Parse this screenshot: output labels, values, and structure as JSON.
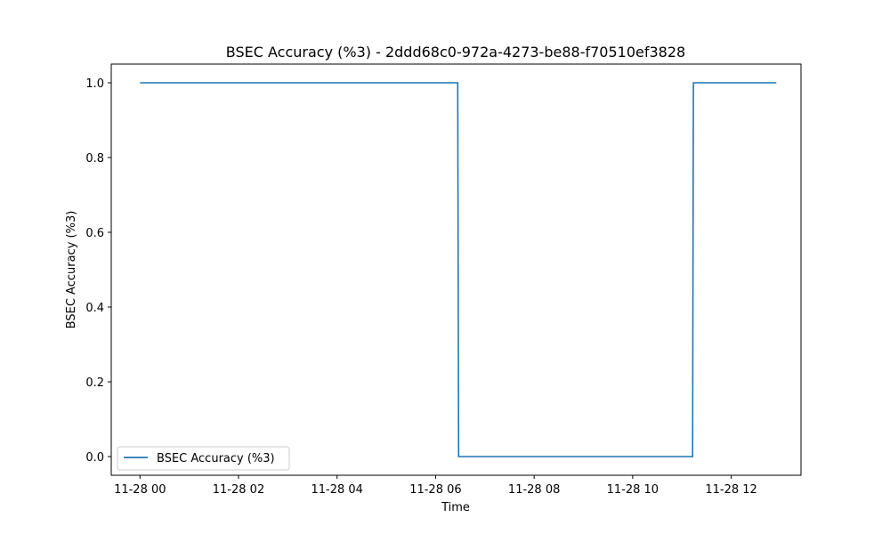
{
  "chart_data": {
    "type": "line",
    "title": "BSEC Accuracy (%3) - 2ddd68c0-972a-4273-be88-f70510ef3828",
    "xlabel": "Time",
    "ylabel": "BSEC Accuracy (%3)",
    "x_ticks": [
      "11-28 00",
      "11-28 02",
      "11-28 04",
      "11-28 06",
      "11-28 08",
      "11-28 10",
      "11-28 12"
    ],
    "y_ticks": [
      "0.0",
      "0.2",
      "0.4",
      "0.6",
      "0.8",
      "1.0"
    ],
    "xlim": [
      "11-27 23:25",
      "11-28 13:25"
    ],
    "ylim": [
      -0.05,
      1.05
    ],
    "grid": false,
    "legend_position": "lower-left",
    "series": [
      {
        "name": "BSEC Accuracy (%3)",
        "color": "#1f77b4",
        "step": true,
        "points": [
          {
            "x": "11-28 00:00",
            "y": 1
          },
          {
            "x": "11-28 06:27",
            "y": 1
          },
          {
            "x": "11-28 06:28",
            "y": 0
          },
          {
            "x": "11-28 11:13",
            "y": 0
          },
          {
            "x": "11-28 11:14",
            "y": 1
          },
          {
            "x": "11-28 12:55",
            "y": 1
          }
        ]
      }
    ]
  }
}
